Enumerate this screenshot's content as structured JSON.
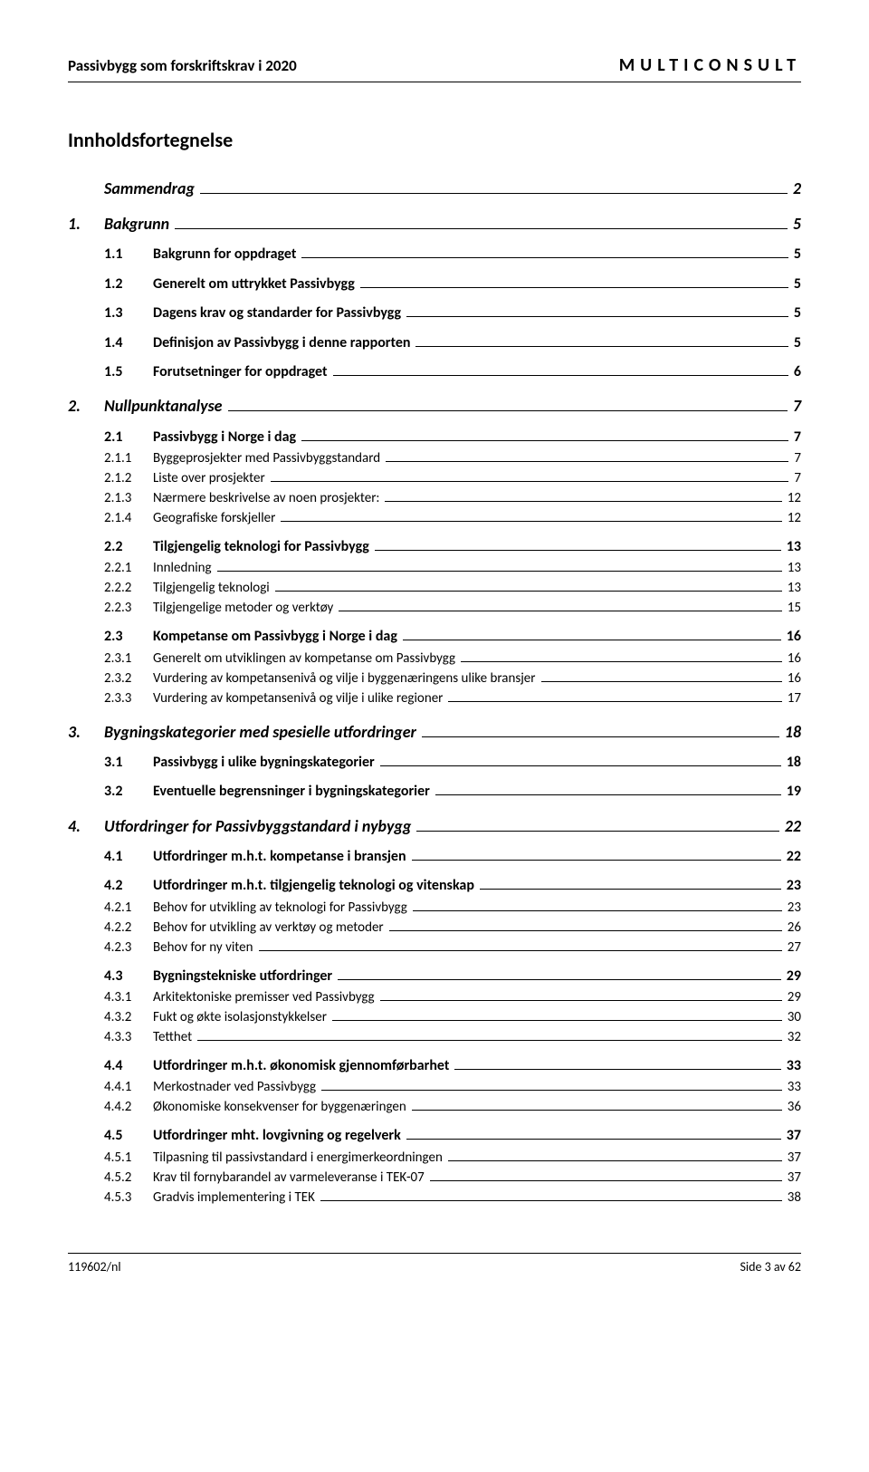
{
  "header": {
    "left": "Passivbygg som forskriftskrav i 2020",
    "right": "MULTICONSULT"
  },
  "toc_title": "Innholdsfortegnelse",
  "entries": [
    {
      "level": 1,
      "num": "",
      "label": "Sammendrag",
      "page": "2"
    },
    {
      "level": 1,
      "num": "1.",
      "label": "Bakgrunn",
      "page": "5"
    },
    {
      "level": 2,
      "num": "1.1",
      "label": "Bakgrunn for oppdraget",
      "page": "5"
    },
    {
      "level": 2,
      "num": "1.2",
      "label": "Generelt om uttrykket Passivbygg",
      "page": "5"
    },
    {
      "level": 2,
      "num": "1.3",
      "label": "Dagens krav og standarder for Passivbygg",
      "page": "5"
    },
    {
      "level": 2,
      "num": "1.4",
      "label": "Definisjon av Passivbygg i denne rapporten",
      "page": "5"
    },
    {
      "level": 2,
      "num": "1.5",
      "label": "Forutsetninger for oppdraget",
      "page": "6"
    },
    {
      "level": 1,
      "num": "2.",
      "label": "Nullpunktanalyse",
      "page": "7"
    },
    {
      "level": 2,
      "num": "2.1",
      "label": "Passivbygg i Norge i dag",
      "page": "7"
    },
    {
      "level": 3,
      "num": "2.1.1",
      "label": "Byggeprosjekter med Passivbyggstandard",
      "page": "7"
    },
    {
      "level": 3,
      "num": "2.1.2",
      "label": "Liste over prosjekter",
      "page": "7"
    },
    {
      "level": 3,
      "num": "2.1.3",
      "label": "Nærmere beskrivelse av noen prosjekter:",
      "page": "12"
    },
    {
      "level": 3,
      "num": "2.1.4",
      "label": "Geografiske forskjeller",
      "page": "12"
    },
    {
      "level": 2,
      "num": "2.2",
      "label": "Tilgjengelig teknologi for Passivbygg",
      "page": "13"
    },
    {
      "level": 3,
      "num": "2.2.1",
      "label": "Innledning",
      "page": "13"
    },
    {
      "level": 3,
      "num": "2.2.2",
      "label": "Tilgjengelig teknologi",
      "page": "13"
    },
    {
      "level": 3,
      "num": "2.2.3",
      "label": "Tilgjengelige metoder og verktøy",
      "page": "15"
    },
    {
      "level": 2,
      "num": "2.3",
      "label": "Kompetanse om Passivbygg i Norge i dag",
      "page": "16"
    },
    {
      "level": 3,
      "num": "2.3.1",
      "label": "Generelt om utviklingen av kompetanse om Passivbygg",
      "page": "16"
    },
    {
      "level": 3,
      "num": "2.3.2",
      "label": "Vurdering av kompetansenivå og vilje i byggenæringens ulike bransjer",
      "page": "16"
    },
    {
      "level": 3,
      "num": "2.3.3",
      "label": "Vurdering av kompetansenivå og vilje i ulike regioner",
      "page": "17"
    },
    {
      "level": 1,
      "num": "3.",
      "label": "Bygningskategorier med spesielle utfordringer",
      "page": "18"
    },
    {
      "level": 2,
      "num": "3.1",
      "label": "Passivbygg i ulike bygningskategorier",
      "page": "18"
    },
    {
      "level": 2,
      "num": "3.2",
      "label": "Eventuelle begrensninger i bygningskategorier",
      "page": "19"
    },
    {
      "level": 1,
      "num": "4.",
      "label": "Utfordringer for Passivbyggstandard i nybygg",
      "page": "22"
    },
    {
      "level": 2,
      "num": "4.1",
      "label": "Utfordringer m.h.t. kompetanse i bransjen",
      "page": "22"
    },
    {
      "level": 2,
      "num": "4.2",
      "label": "Utfordringer m.h.t. tilgjengelig teknologi og vitenskap",
      "page": "23"
    },
    {
      "level": 3,
      "num": "4.2.1",
      "label": "Behov for utvikling av teknologi for Passivbygg",
      "page": "23"
    },
    {
      "level": 3,
      "num": "4.2.2",
      "label": "Behov for utvikling av verktøy og metoder",
      "page": "26"
    },
    {
      "level": 3,
      "num": "4.2.3",
      "label": "Behov for ny viten",
      "page": "27"
    },
    {
      "level": 2,
      "num": "4.3",
      "label": "Bygningstekniske utfordringer",
      "page": "29"
    },
    {
      "level": 3,
      "num": "4.3.1",
      "label": "Arkitektoniske premisser ved Passivbygg",
      "page": "29"
    },
    {
      "level": 3,
      "num": "4.3.2",
      "label": "Fukt og økte isolasjonstykkelser",
      "page": "30"
    },
    {
      "level": 3,
      "num": "4.3.3",
      "label": "Tetthet",
      "page": "32"
    },
    {
      "level": 2,
      "num": "4.4",
      "label": "Utfordringer m.h.t. økonomisk gjennomførbarhet",
      "page": "33"
    },
    {
      "level": 3,
      "num": "4.4.1",
      "label": "Merkostnader ved Passivbygg",
      "page": "33"
    },
    {
      "level": 3,
      "num": "4.4.2",
      "label": "Økonomiske konsekvenser for byggenæringen",
      "page": "36"
    },
    {
      "level": 2,
      "num": "4.5",
      "label": "Utfordringer mht. lovgivning og regelverk",
      "page": "37"
    },
    {
      "level": 3,
      "num": "4.5.1",
      "label": "Tilpasning til passivstandard i energimerkeordningen",
      "page": "37"
    },
    {
      "level": 3,
      "num": "4.5.2",
      "label": "Krav til fornybarandel av varmeleveranse i TEK-07",
      "page": "37"
    },
    {
      "level": 3,
      "num": "4.5.3",
      "label": "Gradvis implementering i TEK",
      "page": "38"
    }
  ],
  "footer": {
    "left": "119602/nl",
    "right": "Side 3 av 62"
  }
}
